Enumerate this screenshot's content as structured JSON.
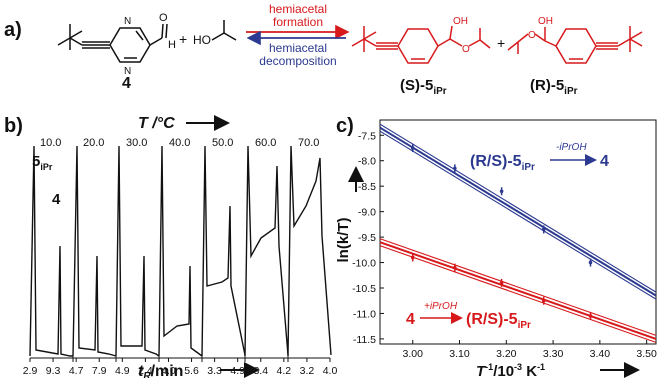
{
  "panel_labels": {
    "a": "a)",
    "b": "b)",
    "c": "c)"
  },
  "scheme": {
    "compound_4": "4",
    "aldehyde_h": "H",
    "aldehyde_o": "O",
    "alcohol_oh": "HO",
    "plus": "+",
    "arrow_top_line1": "hemiacetal",
    "arrow_top_line2": "formation",
    "arrow_bottom_line1": "hemiacetal",
    "arrow_bottom_line2": "decomposition",
    "product_s_label": "(S)-5",
    "product_s_sub": "iPr",
    "product_r_label": "(R)-5",
    "product_r_sub": "iPr",
    "oh": "OH",
    "ether_o": "O",
    "colors": {
      "reactant": "#111111",
      "product": "#d7191c",
      "decomposition": "#2b3990"
    }
  },
  "panel_b": {
    "temperature_axis_label": "T /°C",
    "xlabel": "t",
    "xlabel_sub": "R",
    "xlabel_unit": "/min",
    "peak_label_5": "5",
    "peak_label_5_sub": "iPr",
    "peak_label_4": "4",
    "temperatures": [
      "10.0",
      "20.0",
      "30.0",
      "40.0",
      "50.0",
      "60.0",
      "70.0"
    ],
    "tick_labels": [
      "2.9",
      "9.3",
      "4.7",
      "7.9",
      "4.9",
      "2.4",
      "4.0",
      "5.6",
      "3.3",
      "4.9",
      "3.4",
      "4.2",
      "3.2",
      "4.0"
    ]
  },
  "chart_data": {
    "type": "line",
    "xlabel": "T",
    "xlabel_sup": "-1",
    "xlabel_unit": "/10",
    "xlabel_unit_sup": "-3",
    "xlabel_unit_tail": " K",
    "xlabel_unit_tail_sup": "-1",
    "ylabel": "ln(k/T)",
    "xlim": [
      2.93,
      3.52
    ],
    "ylim": [
      -11.6,
      -7.2
    ],
    "xticks": [
      "3.00",
      "3.10",
      "3.20",
      "3.30",
      "3.40",
      "3.50"
    ],
    "yticks": [
      "-7.5",
      "-8.0",
      "-8.5",
      "-9.0",
      "-9.5",
      "-10.0",
      "-10.5",
      "-11.0",
      "-11.5"
    ],
    "series": [
      {
        "color": "#2b3990",
        "x": [
          3.0,
          3.09,
          3.19,
          3.28,
          3.38
        ],
        "y": [
          -7.75,
          -8.15,
          -8.6,
          -9.35,
          -10.0
        ],
        "fit": [
          [
            2.93,
            -7.35
          ],
          [
            3.52,
            -10.65
          ]
        ],
        "label": "(R/S)-5",
        "label_sub": "iPr",
        "label_arrow": "-iPrOH",
        "label_target": "4"
      },
      {
        "color": "#d7191c",
        "x": [
          3.0,
          3.09,
          3.19,
          3.28,
          3.38
        ],
        "y": [
          -9.9,
          -10.1,
          -10.4,
          -10.75,
          -11.05
        ],
        "fit": [
          [
            2.93,
            -9.6
          ],
          [
            3.52,
            -11.5
          ]
        ],
        "label": "4",
        "label_arrow": "+iPrOH",
        "label_target": "(R/S)-5",
        "label_target_sub": "iPr"
      }
    ]
  }
}
